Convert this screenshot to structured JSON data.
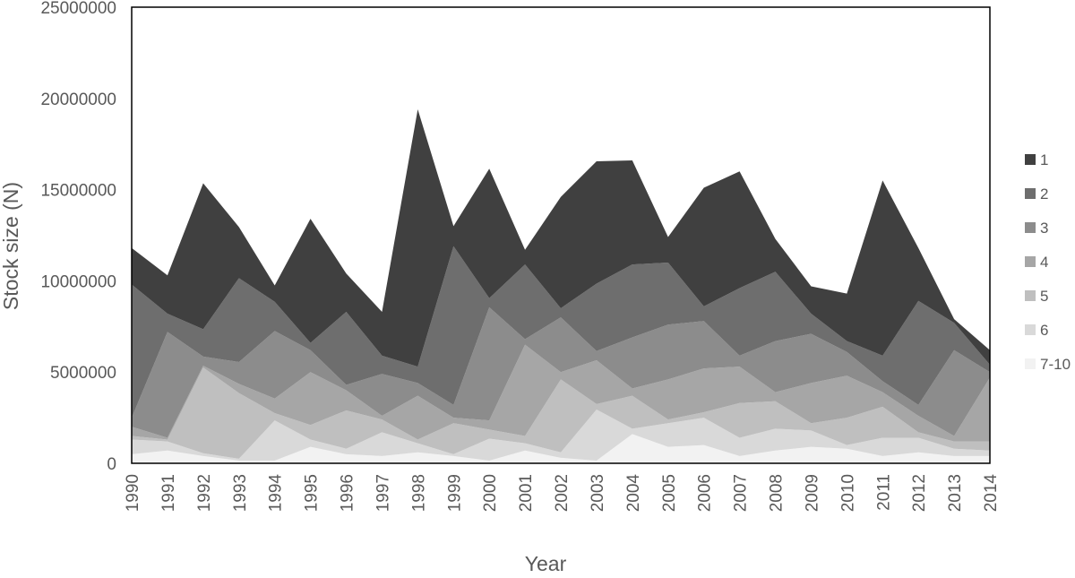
{
  "chart_data": {
    "type": "area",
    "stacked": true,
    "title": "",
    "xlabel": "Year",
    "ylabel": "Stock size (N)",
    "ylim": [
      0,
      25000000
    ],
    "yticks": [
      "0",
      "5000000",
      "10000000",
      "15000000",
      "20000000",
      "25000000"
    ],
    "grid": false,
    "legend_position": "right",
    "categories": [
      "1990",
      "1991",
      "1992",
      "1993",
      "1994",
      "1995",
      "1996",
      "1997",
      "1998",
      "1999",
      "2000",
      "2001",
      "2002",
      "2003",
      "2004",
      "2005",
      "2006",
      "2007",
      "2008",
      "2009",
      "2010",
      "2011",
      "2012",
      "2013",
      "2014"
    ],
    "series": [
      {
        "name": "7-10",
        "color": "#f2f2f2",
        "values": [
          500000,
          700000,
          400000,
          150000,
          150000,
          900000,
          500000,
          400000,
          600000,
          400000,
          150000,
          700000,
          300000,
          150000,
          1600000,
          900000,
          1000000,
          400000,
          700000,
          900000,
          800000,
          400000,
          600000,
          400000,
          400000
        ]
      },
      {
        "name": "6",
        "color": "#d9d9d9",
        "values": [
          800000,
          500000,
          150000,
          100000,
          2200000,
          400000,
          300000,
          1300000,
          500000,
          100000,
          1200000,
          400000,
          300000,
          2800000,
          300000,
          1300000,
          1500000,
          1000000,
          1200000,
          900000,
          200000,
          1000000,
          800000,
          400000,
          300000
        ]
      },
      {
        "name": "5",
        "color": "#bfbfbf",
        "values": [
          200000,
          100000,
          4700000,
          3600000,
          400000,
          800000,
          2100000,
          700000,
          200000,
          1700000,
          500000,
          400000,
          4000000,
          300000,
          1800000,
          200000,
          300000,
          1900000,
          1500000,
          400000,
          1500000,
          1700000,
          300000,
          400000,
          500000
        ]
      },
      {
        "name": "4",
        "color": "#a6a6a6",
        "values": [
          500000,
          100000,
          100000,
          500000,
          800000,
          2900000,
          1100000,
          200000,
          2400000,
          300000,
          500000,
          5000000,
          400000,
          2400000,
          400000,
          2200000,
          2400000,
          2000000,
          500000,
          2200000,
          2300000,
          800000,
          900000,
          300000,
          3500000
        ]
      },
      {
        "name": "3",
        "color": "#8c8c8c",
        "values": [
          500000,
          5800000,
          500000,
          1200000,
          3700000,
          1200000,
          300000,
          2300000,
          700000,
          700000,
          6200000,
          300000,
          3000000,
          500000,
          2800000,
          3000000,
          2600000,
          600000,
          2800000,
          2700000,
          1300000,
          600000,
          600000,
          4700000,
          300000
        ]
      },
      {
        "name": "2",
        "color": "#6e6e6e",
        "values": [
          7300000,
          1000000,
          1500000,
          4600000,
          1600000,
          400000,
          4000000,
          1000000,
          900000,
          8700000,
          500000,
          4100000,
          500000,
          3700000,
          4000000,
          3400000,
          800000,
          3700000,
          3800000,
          1100000,
          600000,
          1400000,
          5700000,
          1500000,
          400000
        ]
      },
      {
        "name": "1",
        "color": "#404040",
        "values": [
          2000000,
          2100000,
          8000000,
          2800000,
          900000,
          6800000,
          2100000,
          2400000,
          14100000,
          1100000,
          7100000,
          800000,
          6100000,
          6700000,
          5700000,
          1400000,
          6500000,
          6400000,
          1800000,
          1500000,
          2600000,
          9600000,
          2900000,
          200000,
          800000
        ]
      }
    ]
  }
}
